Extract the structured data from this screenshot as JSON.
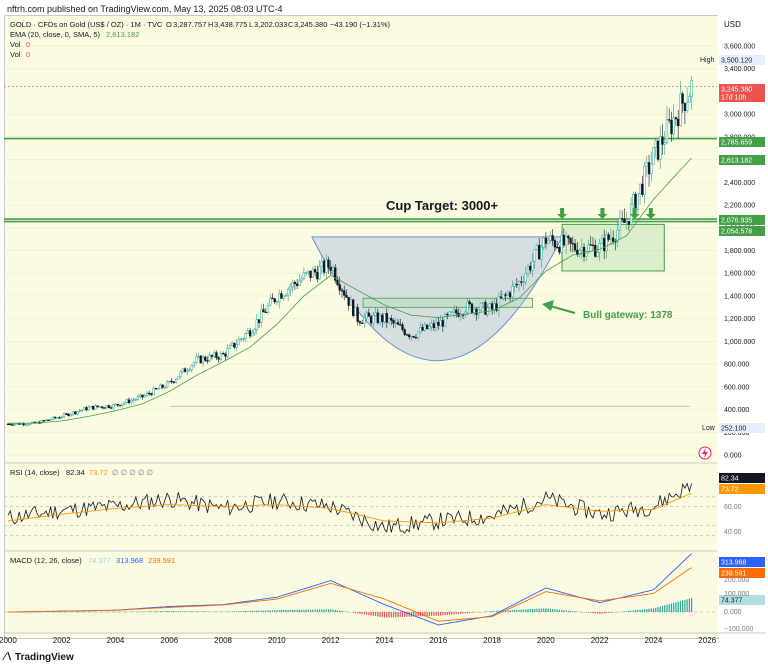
{
  "header": {
    "published_line": "nftrh.com published on TradingView.com, May 13, 2025 08:03 UTC-4"
  },
  "legend": {
    "symbol_line": {
      "title": "GOLD · CFDs on Gold (US$ / OZ) · 1M · TVC",
      "open_label": "O",
      "open": "3,287.757",
      "high_label": "H",
      "high": "3,438.775",
      "low_label": "L",
      "low": "3,202.033",
      "close_label": "C",
      "close": "3,245.380",
      "change": "−43.190 (−1.31%)"
    },
    "ema_line": {
      "label": "EMA (20, close, 0, SMA, 5)",
      "value": "2,613.182"
    },
    "vol_lines": [
      {
        "label": "Vol",
        "value": "0"
      },
      {
        "label": "Vol",
        "value": "0"
      }
    ]
  },
  "currency": "USD",
  "price_axis": {
    "ticks": [
      "3,600.000",
      "3,400.000",
      "3,000.000",
      "2,800.000",
      "2,600.000",
      "2,400.000",
      "2,200.000",
      "2,000.000",
      "1,800.000",
      "1,600.000",
      "1,400.000",
      "1,200.000",
      "1,000.000",
      "800.000",
      "600.000",
      "400.000",
      "200.000",
      "0.000"
    ],
    "high_tag": {
      "label": "High",
      "value": "3,500.120"
    },
    "low_tag": {
      "label": "Low",
      "value": "252.100"
    },
    "current_tag": {
      "value": "3,245.380",
      "countdown": "17d 10h"
    },
    "level_tags": [
      "2,785.659",
      "2,613.182",
      "2,076.935",
      "2,054.578"
    ]
  },
  "annotations": {
    "cup_target": "Cup Target: 3000+",
    "bull_gateway": "Bull gateway: 1378"
  },
  "rsi": {
    "label": "RSI (14, close)",
    "value": "82.34",
    "ma_value": "73.72",
    "extra": "∅ ∅ ∅ ∅ ∅",
    "ticks": [
      "60.00",
      "40.00"
    ],
    "tag_value": "82.34",
    "tag_ma": "73.72"
  },
  "macd": {
    "label": "MACD (12, 26, close)",
    "hist": "74.377",
    "macd": "313.968",
    "signal": "239.591",
    "ticks": [
      "200.000",
      "100.000",
      "0.000",
      "−100.000"
    ],
    "tags": [
      "313.968",
      "239.591",
      "74.377"
    ]
  },
  "x_axis": {
    "ticks": [
      "2000",
      "2002",
      "2004",
      "2006",
      "2008",
      "2010",
      "2012",
      "2014",
      "2016",
      "2018",
      "2020",
      "2022",
      "2024",
      "2026"
    ]
  },
  "footer": {
    "brand": "TradingView"
  },
  "colors": {
    "background": "#fbfbe2",
    "candle_up": "#26a69a",
    "candle_down": "#131722",
    "ema": "#43a047",
    "support_lines": "#43a047",
    "cup_fill": "#b8c6de",
    "cup_stroke": "#6b8fd6",
    "rsi_line": "#131722",
    "rsi_ma": "#ff9800",
    "macd_line": "#2962ff",
    "signal_line": "#ff6d00",
    "current_tag": "#ef5350",
    "ema_tag": "#43a047",
    "arrows": "#43a047"
  },
  "chart_data": [
    {
      "type": "candlestick",
      "title": "GOLD · CFDs on Gold (US$ / OZ) · 1M · TVC",
      "x": [
        "2000",
        "2001",
        "2002",
        "2003",
        "2004",
        "2005",
        "2006",
        "2007",
        "2008",
        "2009",
        "2010",
        "2011",
        "2012",
        "2013",
        "2014",
        "2015",
        "2016",
        "2017",
        "2018",
        "2019",
        "2020",
        "2021",
        "2022",
        "2023",
        "2024",
        "2025.4"
      ],
      "close": [
        273,
        278,
        342,
        416,
        438,
        513,
        632,
        834,
        880,
        1097,
        1405,
        1564,
        1675,
        1204,
        1199,
        1060,
        1150,
        1303,
        1282,
        1517,
        1898,
        1829,
        1824,
        2063,
        2624,
        3245
      ],
      "series": [
        {
          "name": "EMA (20, close, 0, SMA, 5)",
          "values": [
            280,
            280,
            300,
            340,
            390,
            450,
            560,
            700,
            820,
            950,
            1150,
            1400,
            1580,
            1450,
            1320,
            1230,
            1210,
            1240,
            1270,
            1380,
            1620,
            1760,
            1810,
            1930,
            2250,
            2613
          ]
        }
      ],
      "horizontal_levels": [
        2785.659,
        2076.935,
        2054.578
      ],
      "ylim": [
        0,
        3650
      ]
    },
    {
      "type": "line",
      "title": "RSI (14, close)",
      "x": [
        "2000",
        "2002",
        "2004",
        "2006",
        "2008",
        "2010",
        "2012",
        "2014",
        "2016",
        "2018",
        "2020",
        "2022",
        "2024",
        "2025.4"
      ],
      "series": [
        {
          "name": "RSI",
          "values": [
            48,
            56,
            60,
            68,
            58,
            66,
            60,
            38,
            45,
            50,
            68,
            52,
            60,
            82.34
          ]
        },
        {
          "name": "MA",
          "values": [
            45,
            52,
            58,
            62,
            60,
            62,
            58,
            45,
            43,
            48,
            62,
            55,
            57,
            73.72
          ]
        }
      ],
      "ylim": [
        20,
        100
      ]
    },
    {
      "type": "line",
      "title": "MACD (12, 26, close)",
      "x": [
        "2000",
        "2002",
        "2004",
        "2006",
        "2008",
        "2010",
        "2012",
        "2014",
        "2016",
        "2018",
        "2020",
        "2022",
        "2024",
        "2025.4"
      ],
      "series": [
        {
          "name": "MACD",
          "values": [
            0,
            5,
            10,
            30,
            40,
            80,
            170,
            40,
            -70,
            -20,
            130,
            50,
            120,
            313.968
          ]
        },
        {
          "name": "Signal",
          "values": [
            0,
            4,
            9,
            25,
            38,
            70,
            155,
            70,
            -50,
            -25,
            110,
            60,
            100,
            239.591
          ]
        },
        {
          "name": "Histogram",
          "values": [
            0,
            1,
            1,
            5,
            2,
            10,
            15,
            -30,
            -20,
            5,
            20,
            -10,
            20,
            74.377
          ]
        }
      ],
      "ylim": [
        -120,
        330
      ]
    }
  ]
}
